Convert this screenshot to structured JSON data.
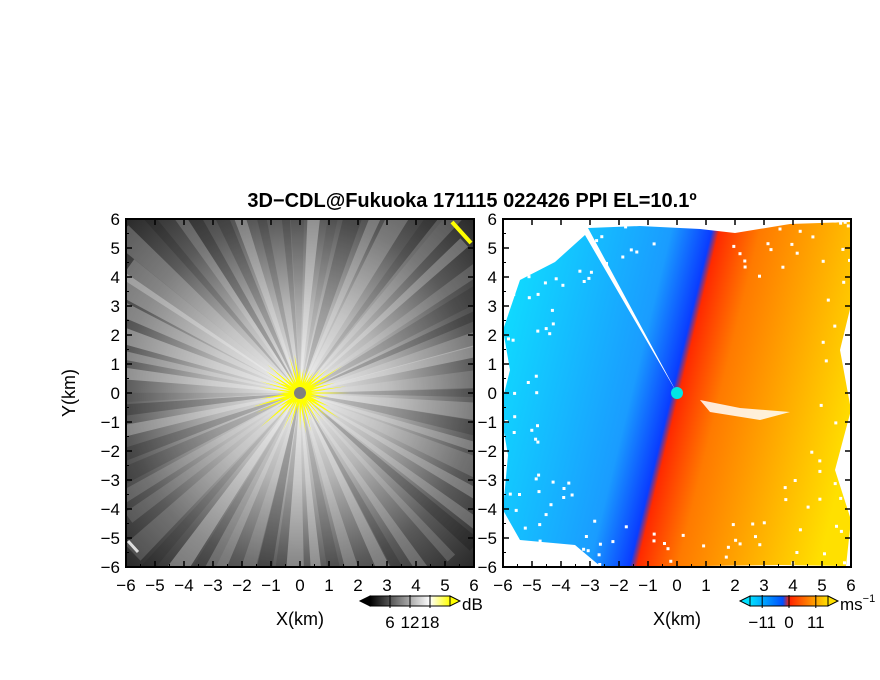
{
  "title": "3D−CDL@Fukuoka 171115 022426 PPI EL=10.1º",
  "chart_data": [
    {
      "type": "heatmap",
      "panel": "left",
      "quantity": "reflectivity",
      "xlabel": "X(km)",
      "ylabel": "Y(km)",
      "xlim": [
        -6,
        6
      ],
      "ylim": [
        -6,
        6
      ],
      "xticks": [
        "−6",
        "−5",
        "−4",
        "−3",
        "−2",
        "−1",
        "0",
        "1",
        "2",
        "3",
        "4",
        "5",
        "6"
      ],
      "yticks": [
        "6",
        "5",
        "4",
        "3",
        "2",
        "1",
        "0",
        "−1",
        "−2",
        "−3",
        "−4",
        "−5",
        "−6"
      ],
      "colorbar": {
        "unit": "dB",
        "ticks": [
          "6",
          "12",
          "18"
        ],
        "range": [
          0,
          24
        ],
        "colors": [
          "#000000",
          "#ffffff",
          "#ffff00"
        ]
      },
      "center_marker_color": "#808080"
    },
    {
      "type": "heatmap",
      "panel": "right",
      "quantity": "doppler velocity",
      "xlabel": "X(km)",
      "ylabel": "",
      "xlim": [
        -6,
        6
      ],
      "ylim": [
        -6,
        6
      ],
      "xticks": [
        "−6",
        "−5",
        "−4",
        "−3",
        "−2",
        "−1",
        "0",
        "1",
        "2",
        "3",
        "4",
        "5",
        "6"
      ],
      "yticks": [
        "6",
        "5",
        "4",
        "3",
        "2",
        "1",
        "0",
        "−1",
        "−2",
        "−3",
        "−4",
        "−5",
        "−6"
      ],
      "colorbar": {
        "unit": "ms",
        "unit_exponent": "−1",
        "ticks": [
          "−11",
          "0",
          "11"
        ],
        "range": [
          -16,
          16
        ],
        "colors": [
          "#00e0ff",
          "#0040ff",
          "#ff2000",
          "#ffe000"
        ]
      },
      "center_marker_color": "#00e5e5"
    }
  ]
}
